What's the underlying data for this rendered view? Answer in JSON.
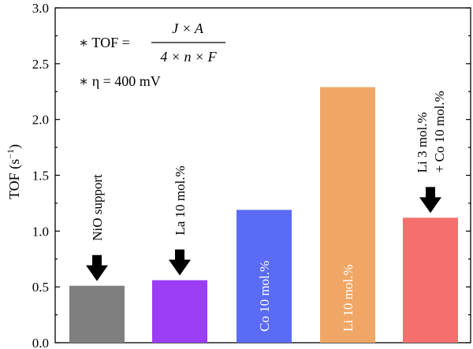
{
  "chart_data": {
    "type": "bar",
    "title": "",
    "xlabel": "",
    "ylabel": "TOF (s",
    "ylabel_sup": "−1",
    "ylabel_close": ")",
    "ylim": [
      0,
      3.0
    ],
    "yticks": [
      "0.0",
      "0.5",
      "1.0",
      "1.5",
      "2.0",
      "2.5",
      "3.0"
    ],
    "grid": false,
    "categories": [
      [
        "NiO support"
      ],
      [
        "La 10 mol.%"
      ],
      [
        "Co 10 mol.%"
      ],
      [
        "Li 10 mol.%"
      ],
      [
        "Li 3 mol.%",
        "+ Co 10 mol.%"
      ]
    ],
    "values": [
      0.51,
      0.56,
      1.19,
      2.29,
      1.12
    ],
    "colors": [
      "#7f7f7f",
      "#9b3df5",
      "#5a6bf5",
      "#f0a766",
      "#f56f6f"
    ],
    "label_colors": [
      "#000000",
      "#000000",
      "#ffffff",
      "#ffffff",
      "#000000"
    ],
    "label_inside": [
      false,
      false,
      true,
      true,
      false
    ],
    "arrows": [
      true,
      true,
      false,
      false,
      true
    ],
    "annotations": {
      "tof_prefix": "∗ TOF =",
      "numerator": "J × A",
      "denominator": "4 × n × F",
      "eta": "∗ η = 400 mV"
    }
  }
}
